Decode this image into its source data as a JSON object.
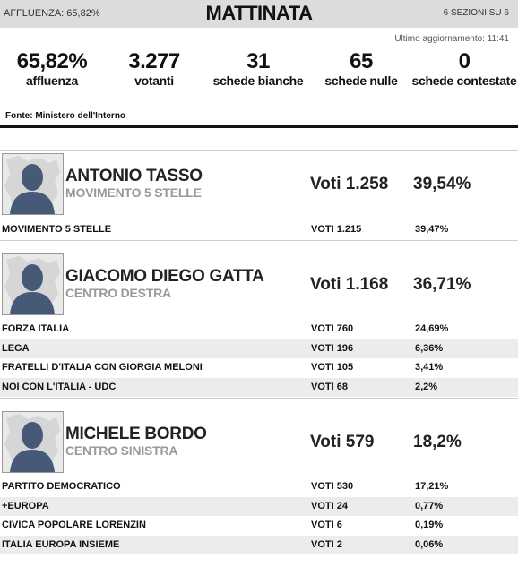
{
  "header": {
    "affluenza_label": "AFFLUENZA: 65,82%",
    "title": "MATTINATA",
    "sezioni": "6 SEZIONI SU 6"
  },
  "updated": "Ultimo aggiornamento: 11:41",
  "stats": [
    {
      "value": "65,82%",
      "label": "affluenza"
    },
    {
      "value": "3.277",
      "label": "votanti"
    },
    {
      "value": "31",
      "label": "schede bianche"
    },
    {
      "value": "65",
      "label": "schede nulle"
    },
    {
      "value": "0",
      "label": "schede contestate"
    }
  ],
  "source": "Fonte: Ministero dell'Interno",
  "candidates": [
    {
      "name": "ANTONIO TASSO",
      "coalition": "MOVIMENTO 5 STELLE",
      "votes": "Voti 1.258",
      "pct": "39,54%",
      "lists": [
        {
          "name": "MOVIMENTO 5 STELLE",
          "votes": "VOTI 1.215",
          "pct": "39,47%"
        }
      ]
    },
    {
      "name": "GIACOMO DIEGO GATTA",
      "coalition": "CENTRO DESTRA",
      "votes": "Voti 1.168",
      "pct": "36,71%",
      "lists": [
        {
          "name": "FORZA ITALIA",
          "votes": "VOTI 760",
          "pct": "24,69%"
        },
        {
          "name": "LEGA",
          "votes": "VOTI 196",
          "pct": "6,36%"
        },
        {
          "name": "FRATELLI D'ITALIA CON GIORGIA MELONI",
          "votes": "VOTI 105",
          "pct": "3,41%"
        },
        {
          "name": "NOI CON L'ITALIA - UDC",
          "votes": "VOTI 68",
          "pct": "2,2%"
        }
      ]
    },
    {
      "name": "MICHELE BORDO",
      "coalition": "CENTRO SINISTRA",
      "votes": "Voti 579",
      "pct": "18,2%",
      "lists": [
        {
          "name": "PARTITO DEMOCRATICO",
          "votes": "VOTI 530",
          "pct": "17,21%"
        },
        {
          "name": "+EUROPA",
          "votes": "VOTI 24",
          "pct": "0,77%"
        },
        {
          "name": "CIVICA POPOLARE LORENZIN",
          "votes": "VOTI 6",
          "pct": "0,19%"
        },
        {
          "name": "ITALIA EUROPA INSIEME",
          "votes": "VOTI 2",
          "pct": "0,06%"
        }
      ]
    }
  ]
}
